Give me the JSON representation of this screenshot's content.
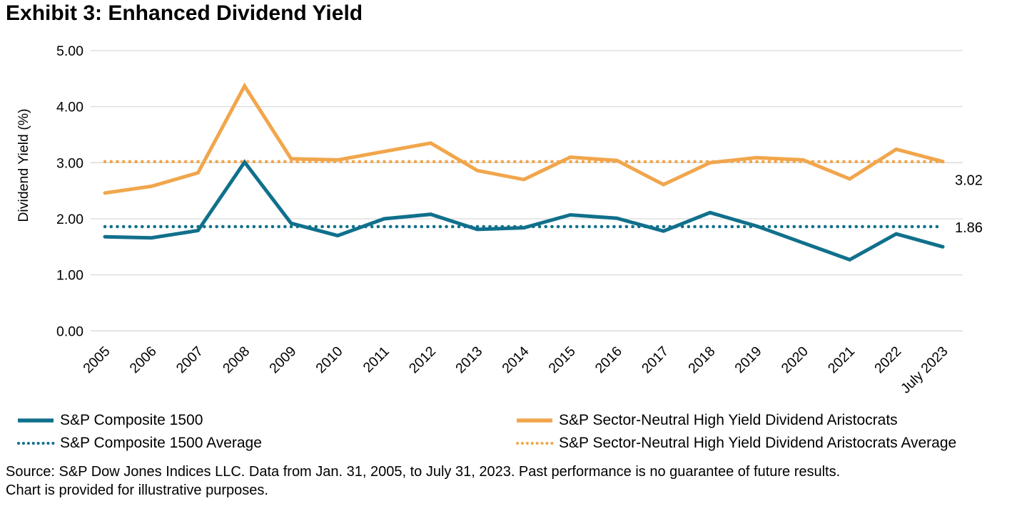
{
  "title": "Exhibit 3: Enhanced Dividend Yield",
  "chart_data": {
    "type": "line",
    "title": "Exhibit 3: Enhanced Dividend Yield",
    "xlabel": "",
    "ylabel": "Dividend Yield (%)",
    "ylim": [
      0,
      5
    ],
    "ytick_labels": [
      "0.00",
      "1.00",
      "2.00",
      "3.00",
      "4.00",
      "5.00"
    ],
    "grid": true,
    "legend_position": "bottom",
    "categories": [
      "2005",
      "2006",
      "2007",
      "2008",
      "2009",
      "2010",
      "2011",
      "2012",
      "2013",
      "2014",
      "2015",
      "2016",
      "2017",
      "2018",
      "2019",
      "2020",
      "2021",
      "2022",
      "July 2023"
    ],
    "series": [
      {
        "name": "S&P Composite 1500",
        "style": "solid",
        "color": "#10708C",
        "values": [
          1.68,
          1.66,
          1.79,
          3.01,
          1.92,
          1.7,
          2.0,
          2.08,
          1.81,
          1.84,
          2.07,
          2.01,
          1.78,
          2.11,
          1.87,
          1.57,
          1.27,
          1.73,
          1.5
        ]
      },
      {
        "name": "S&P Sector-Neutral High Yield Dividend Aristocrats",
        "style": "solid",
        "color": "#F1A64C",
        "values": [
          2.46,
          2.58,
          2.82,
          4.37,
          3.07,
          3.05,
          3.2,
          3.35,
          2.86,
          2.7,
          3.1,
          3.04,
          2.61,
          3.0,
          3.09,
          3.05,
          2.71,
          3.24,
          3.02
        ]
      },
      {
        "name": "S&P Composite 1500 Average",
        "style": "dotted",
        "color": "#10708C",
        "value": 1.86,
        "annotation": "1.86"
      },
      {
        "name": "S&P Sector-Neutral High Yield Dividend Aristocrats Average",
        "style": "dotted",
        "color": "#F1A64C",
        "value": 3.02,
        "annotation": "3.02"
      }
    ],
    "annotations": [
      {
        "label": "3.02",
        "series": "S&P Sector-Neutral High Yield Dividend Aristocrats Average"
      },
      {
        "label": "1.86",
        "series": "S&P Composite 1500 Average"
      }
    ]
  },
  "legend": {
    "items": [
      {
        "label": "S&P Composite 1500",
        "color": "#10708C",
        "style": "solid"
      },
      {
        "label": "S&P Composite 1500 Average",
        "color": "#10708C",
        "style": "dotted"
      },
      {
        "label": "S&P Sector-Neutral High Yield Dividend Aristocrats",
        "color": "#F1A64C",
        "style": "solid"
      },
      {
        "label": "S&P Sector-Neutral High Yield Dividend Aristocrats Average",
        "color": "#F1A64C",
        "style": "dotted"
      }
    ]
  },
  "source": {
    "line1": "Source: S&P Dow Jones Indices LLC. Data from Jan. 31, 2005, to July 31, 2023. Past performance is no guarantee of future results.",
    "line2": "Chart is provided for illustrative purposes."
  },
  "colors": {
    "composite": "#10708C",
    "aristocrats": "#F1A64C",
    "gridline": "#D9D9D9",
    "text": "#000000"
  }
}
